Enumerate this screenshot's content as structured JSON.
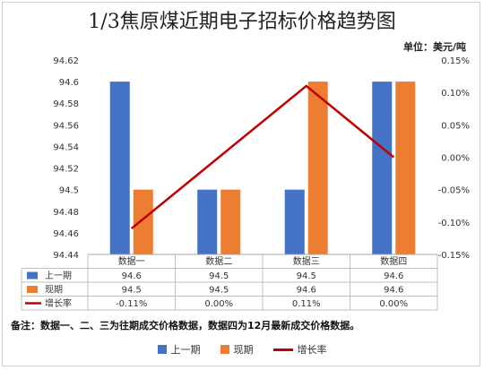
{
  "title": "1/3焦原煤近期电子招标价格趋势图",
  "unit": "单位：美元/吨",
  "note": "备注：数据一、二、三为往期成交价格数据，数据四为12月最新成交价格数据。",
  "chart_data": {
    "type": "bar",
    "categories": [
      "数据一",
      "数据二",
      "数据三",
      "数据四"
    ],
    "series": [
      {
        "name": "上一期",
        "type": "bar",
        "axis": "left",
        "color": "#4472C4",
        "values": [
          94.6,
          94.5,
          94.5,
          94.6
        ],
        "labels": [
          "94.6",
          "94.5",
          "94.5",
          "94.6"
        ]
      },
      {
        "name": "现期",
        "type": "bar",
        "axis": "left",
        "color": "#ED7D31",
        "values": [
          94.5,
          94.5,
          94.6,
          94.6
        ],
        "labels": [
          "94.5",
          "94.5",
          "94.6",
          "94.6"
        ]
      },
      {
        "name": "增长率",
        "type": "line",
        "axis": "right",
        "color": "#C00000",
        "values": [
          -0.11,
          0.0,
          0.11,
          0.0
        ],
        "labels": [
          "-0.11%",
          "0.00%",
          "0.11%",
          "0.00%"
        ]
      }
    ],
    "y_left": {
      "ylim": [
        94.44,
        94.62
      ],
      "ticks": [
        "94.62",
        "94.6",
        "94.58",
        "94.56",
        "94.54",
        "94.52",
        "94.5",
        "94.48",
        "94.46",
        "94.44"
      ]
    },
    "y_right": {
      "ylim": [
        -0.15,
        0.15
      ],
      "unit": "%",
      "ticks": [
        "0.15%",
        "0.10%",
        "0.05%",
        "0.00%",
        "-0.05%",
        "-0.10%",
        "-0.15%"
      ]
    },
    "grid": false,
    "legend_position": "bottom"
  }
}
